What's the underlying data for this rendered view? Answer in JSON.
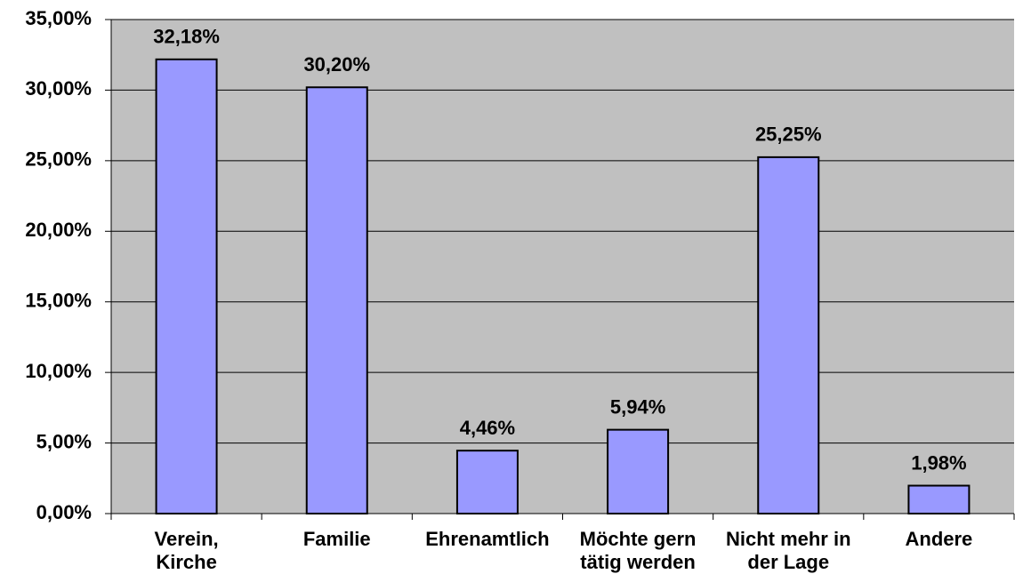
{
  "chart_data": {
    "type": "bar",
    "categories": [
      "Verein,\nKirche",
      "Familie",
      "Ehrenamtlich",
      "Möchte gern\ntätig werden",
      "Nicht mehr in\nder Lage",
      "Andere"
    ],
    "values": [
      32.18,
      30.2,
      4.46,
      5.94,
      25.25,
      1.98
    ],
    "value_labels": [
      "32,18%",
      "30,20%",
      "4,46%",
      "5,94%",
      "25,25%",
      "1,98%"
    ],
    "color": "#9999ff",
    "ylim": [
      0,
      35
    ],
    "yticks": [
      {
        "value": 0,
        "label": "0,00%"
      },
      {
        "value": 5,
        "label": "5,00%"
      },
      {
        "value": 10,
        "label": "10,00%"
      },
      {
        "value": 15,
        "label": "15,00%"
      },
      {
        "value": 20,
        "label": "20,00%"
      },
      {
        "value": 25,
        "label": "25,00%"
      },
      {
        "value": 30,
        "label": "30,00%"
      },
      {
        "value": 35,
        "label": "35,00%"
      }
    ],
    "grid": true
  }
}
